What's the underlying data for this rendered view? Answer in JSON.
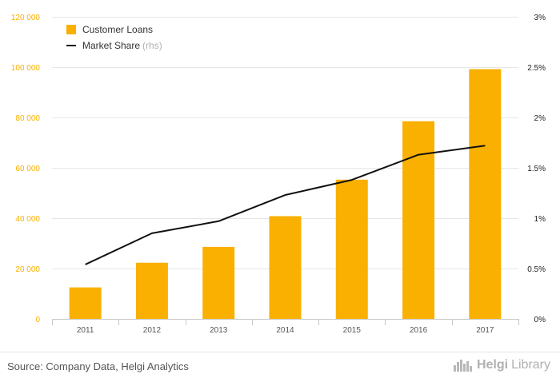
{
  "chart_data": {
    "type": "bar+line",
    "categories": [
      "2011",
      "2012",
      "2013",
      "2014",
      "2015",
      "2016",
      "2017"
    ],
    "series": [
      {
        "name": "Customer Loans",
        "type": "bar",
        "axis": "left",
        "color": "#f9b000",
        "values": [
          12500,
          22300,
          28600,
          40800,
          55300,
          78500,
          99200
        ]
      },
      {
        "name": "Market Share",
        "type": "line",
        "axis": "right",
        "color": "#111111",
        "values": [
          0.54,
          0.85,
          0.97,
          1.23,
          1.38,
          1.63,
          1.72
        ]
      }
    ],
    "left_axis": {
      "min": 0,
      "max": 120000,
      "ticks": [
        0,
        20000,
        40000,
        60000,
        80000,
        100000,
        120000
      ],
      "tick_labels": [
        "0",
        "20 000",
        "40 000",
        "60 000",
        "80 000",
        "100 000",
        "120 000"
      ],
      "color": "#f9b000"
    },
    "right_axis": {
      "min": 0,
      "max": 3,
      "ticks": [
        0,
        0.5,
        1,
        1.5,
        2,
        2.5,
        3
      ],
      "tick_labels": [
        "0%",
        "0.5%",
        "1%",
        "1.5%",
        "2%",
        "2.5%",
        "3%"
      ],
      "color": "#111111"
    },
    "legend": {
      "items": [
        "Customer Loans",
        "Market Share"
      ],
      "rhs_note": "(rhs)",
      "position": "top-left"
    },
    "grid": true
  },
  "footer": {
    "source": "Source: Company Data, Helgi Analytics",
    "brand_part1": "Helgi",
    "brand_part2": "Library"
  }
}
